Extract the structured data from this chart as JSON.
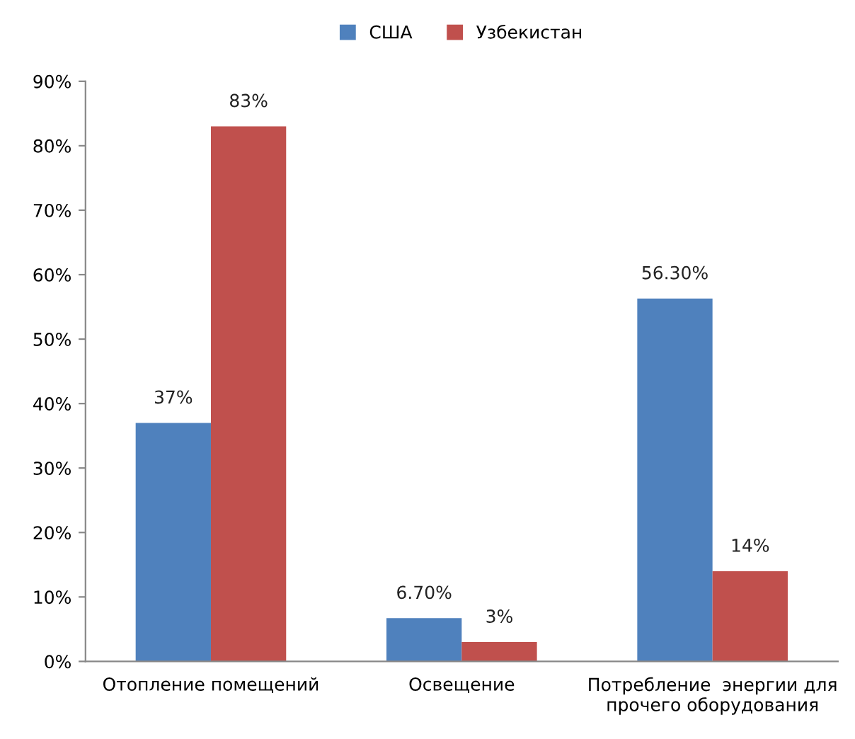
{
  "chart_data": {
    "type": "bar",
    "categories": [
      "Отопление помещений",
      "Освещение",
      "Потребление  энергии для\nпрочего оборудования"
    ],
    "series": [
      {
        "name": "США",
        "color": "#4f81bd",
        "values": [
          37,
          6.7,
          56.3
        ],
        "value_labels": [
          "37%",
          "6.70%",
          "56.30%"
        ]
      },
      {
        "name": "Узбекистан",
        "color": "#c0504d",
        "values": [
          83,
          3,
          14
        ],
        "value_labels": [
          "83%",
          "3%",
          "14%"
        ]
      }
    ],
    "ylim": [
      0,
      90
    ],
    "yticks": [
      {
        "value": 0,
        "label": "0%"
      },
      {
        "value": 10,
        "label": "10%"
      },
      {
        "value": 20,
        "label": "20%"
      },
      {
        "value": 30,
        "label": "30%"
      },
      {
        "value": 40,
        "label": "40%"
      },
      {
        "value": 50,
        "label": "50%"
      },
      {
        "value": 60,
        "label": "60%"
      },
      {
        "value": 70,
        "label": "70%"
      },
      {
        "value": 80,
        "label": "80%"
      },
      {
        "value": 90,
        "label": "90%"
      }
    ],
    "grid": false,
    "legend": "top"
  }
}
